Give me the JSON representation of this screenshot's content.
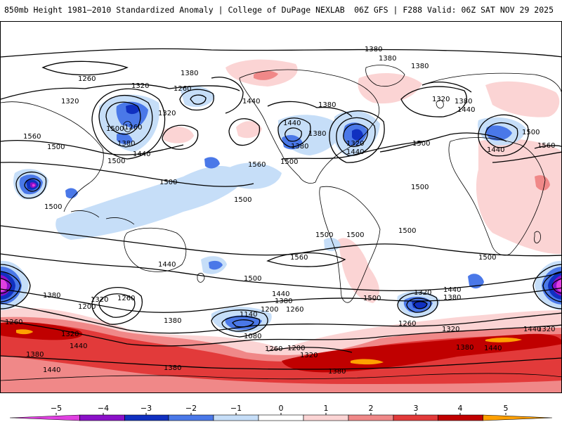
{
  "header": {
    "title_left": "850mb Height 1981–2010 Standardized Anomaly | College of DuPage NEXLAB",
    "title_right": "06Z GFS | F288 Valid: 06Z SAT NOV 29 2025"
  },
  "colors": {
    "anom_minus5": "#e040e0",
    "anom_minus4": "#8a10c8",
    "anom_minus3": "#1030c0",
    "anom_minus2": "#4a78e8",
    "anom_minus1": "#c6def8",
    "neutral": "#ffffff",
    "anom_plus1": "#fbd4d4",
    "anom_plus2": "#f08888",
    "anom_plus3": "#e23a3a",
    "anom_plus4": "#c00000",
    "anom_plus5": "#ffa000",
    "contour": "#000000",
    "coast": "#000000"
  },
  "contour_labels": [
    {
      "text": "1380"
    },
    {
      "text": "1380"
    },
    {
      "text": "1380"
    },
    {
      "text": "1260"
    },
    {
      "text": "1380"
    },
    {
      "text": "1320"
    },
    {
      "text": "1260"
    },
    {
      "text": "1320"
    },
    {
      "text": "1440"
    },
    {
      "text": "1320"
    },
    {
      "text": "1380"
    },
    {
      "text": "1320"
    },
    {
      "text": "1380"
    },
    {
      "text": "1440"
    },
    {
      "text": "1260"
    },
    {
      "text": "1560"
    },
    {
      "text": "1500"
    },
    {
      "text": "1500"
    },
    {
      "text": "1380"
    },
    {
      "text": "1440"
    },
    {
      "text": "1500"
    },
    {
      "text": "1560"
    },
    {
      "text": "1440"
    },
    {
      "text": "1380"
    },
    {
      "text": "1500"
    },
    {
      "text": "1380"
    },
    {
      "text": "1320"
    },
    {
      "text": "1440"
    },
    {
      "text": "1500"
    },
    {
      "text": "1500"
    },
    {
      "text": "1440"
    },
    {
      "text": "1560"
    },
    {
      "text": "1500"
    },
    {
      "text": "1500"
    },
    {
      "text": "1500"
    },
    {
      "text": "1500"
    },
    {
      "text": "1500"
    },
    {
      "text": "1500"
    },
    {
      "text": "1500"
    },
    {
      "text": "1440"
    },
    {
      "text": "1560"
    },
    {
      "text": "1500"
    },
    {
      "text": "1500"
    },
    {
      "text": "1440"
    },
    {
      "text": "1380"
    },
    {
      "text": "1320"
    },
    {
      "text": "1260"
    },
    {
      "text": "1200"
    },
    {
      "text": "1380"
    },
    {
      "text": "1440"
    },
    {
      "text": "1380"
    },
    {
      "text": "1320"
    },
    {
      "text": "1200"
    },
    {
      "text": "1260"
    },
    {
      "text": "1140"
    },
    {
      "text": "1080"
    },
    {
      "text": "1260"
    },
    {
      "text": "1200"
    },
    {
      "text": "1320"
    },
    {
      "text": "1380"
    },
    {
      "text": "1500"
    },
    {
      "text": "1320"
    },
    {
      "text": "1440"
    },
    {
      "text": "1380"
    },
    {
      "text": "1260"
    },
    {
      "text": "1320"
    },
    {
      "text": "1380"
    },
    {
      "text": "1440"
    },
    {
      "text": "1260"
    },
    {
      "text": "1320"
    },
    {
      "text": "1440"
    },
    {
      "text": "1380"
    },
    {
      "text": "1440"
    },
    {
      "text": "1380"
    }
  ],
  "colorbar": {
    "ticks": [
      "−5",
      "−4",
      "−3",
      "−2",
      "−1",
      "0",
      "1",
      "2",
      "3",
      "4",
      "5"
    ]
  }
}
